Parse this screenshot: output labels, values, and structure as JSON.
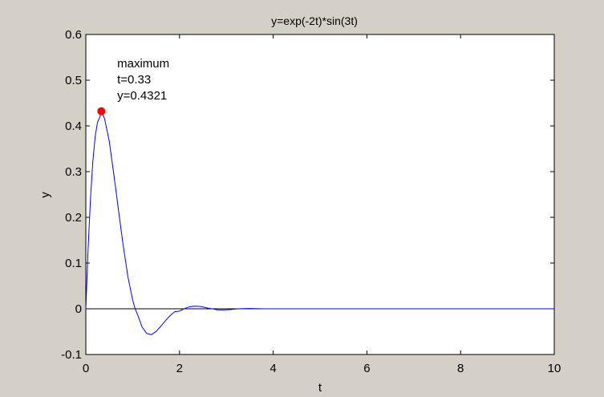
{
  "figure": {
    "background_color": "#d4d0c8",
    "axes_background_color": "#ffffff"
  },
  "chart_data": {
    "type": "line",
    "title": "y=exp(-2t)*sin(3t)",
    "xlabel": "t",
    "ylabel": "y",
    "xlim": [
      0,
      10
    ],
    "ylim": [
      -0.1,
      0.6
    ],
    "x_ticks": [
      0,
      2,
      4,
      6,
      8,
      10
    ],
    "x_tick_labels": [
      "0",
      "2",
      "4",
      "6",
      "8",
      "10"
    ],
    "y_ticks": [
      -0.1,
      0,
      0.1,
      0.2,
      0.3,
      0.4,
      0.5,
      0.6
    ],
    "y_tick_labels": [
      "-0.1",
      "0",
      "0.1",
      "0.2",
      "0.3",
      "0.4",
      "0.5",
      "0.6"
    ],
    "grid": false,
    "series": [
      {
        "color": "#0000ff",
        "x": [
          0,
          0.05,
          0.1,
          0.15,
          0.2,
          0.25,
          0.3,
          0.33,
          0.4,
          0.5,
          0.6,
          0.7,
          0.8,
          0.9,
          1.0,
          1.05,
          1.1,
          1.2,
          1.3,
          1.4,
          1.5,
          1.6,
          1.7,
          1.8,
          1.9,
          2.0,
          2.1,
          2.2,
          2.3,
          2.4,
          2.5,
          2.6,
          2.7,
          2.8,
          2.9,
          3.0,
          3.1,
          3.2,
          3.3,
          3.4,
          3.5,
          3.6,
          3.7,
          3.8,
          3.9,
          4.0,
          4.5,
          5.0,
          6.0,
          7.0,
          8.0,
          9.0,
          10.0
        ],
        "y": [
          0,
          0.1342,
          0.2419,
          0.3226,
          0.3774,
          0.4086,
          0.4191,
          0.4321,
          0.4157,
          0.3669,
          0.2921,
          0.2136,
          0.1365,
          0.069,
          0.0191,
          0.0009,
          -0.0116,
          -0.0397,
          -0.054,
          -0.0565,
          -0.0497,
          -0.0383,
          -0.026,
          -0.0149,
          -0.0064,
          -0.005,
          0.0001,
          0.004,
          0.0056,
          0.0055,
          0.004,
          0.0016,
          0.0,
          -0.0022,
          -0.0027,
          -0.0023,
          -0.0015,
          -0.0005,
          0.0002,
          0.0005,
          0.0006,
          0.0005,
          0.0003,
          0.0001,
          -0.0001,
          -0.0001,
          0.0,
          0.0,
          0.0,
          0.0,
          0.0,
          0.0,
          0.0
        ]
      }
    ],
    "zero_line": {
      "y": 0,
      "color": "#000000"
    },
    "marker": {
      "x": 0.33,
      "y": 0.4321,
      "color": "#ff0000"
    },
    "annotation_lines": [
      "maximum",
      "t=0.33",
      "y=0.4321"
    ],
    "annotation_anchor": {
      "x": 0.67,
      "y": 0.5
    }
  }
}
